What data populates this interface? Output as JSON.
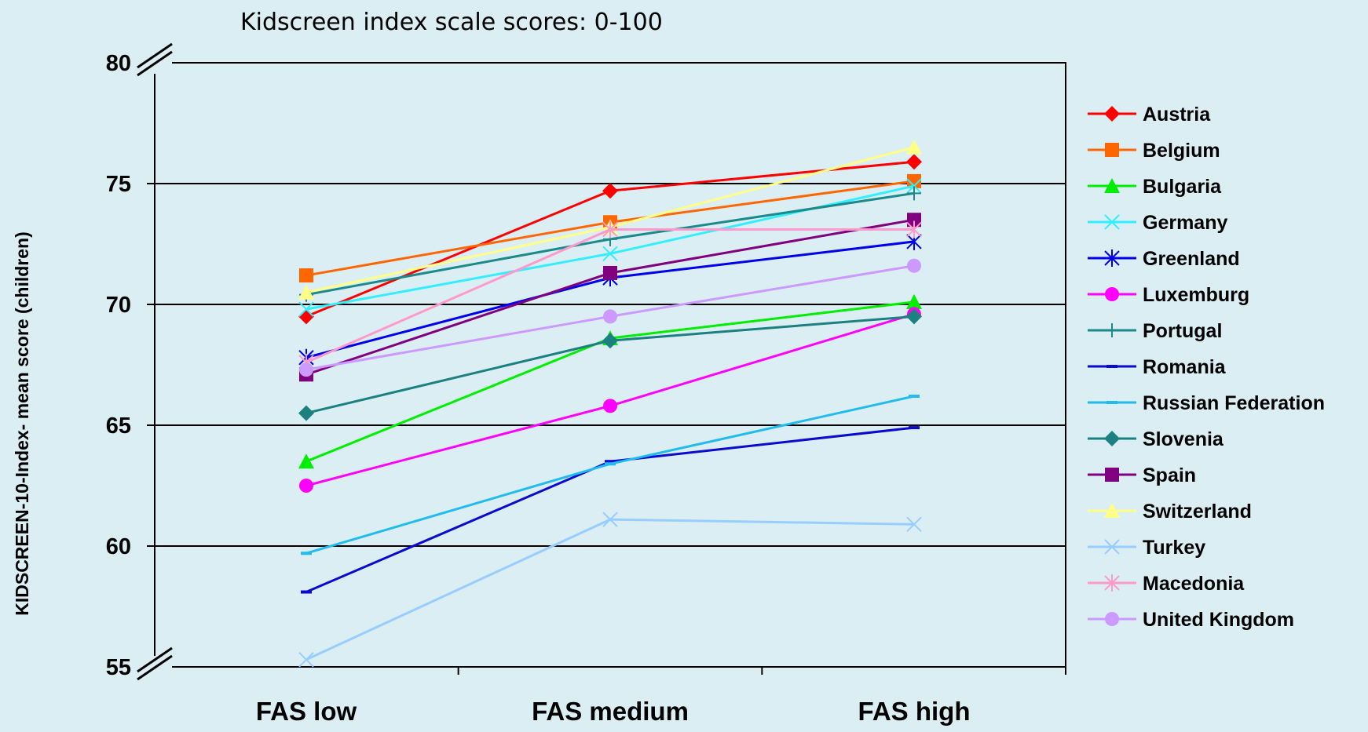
{
  "chart_data": {
    "type": "line",
    "title": "Kidscreen index scale scores: 0-100",
    "xlabel": "",
    "ylabel": "KIDSCREEN-10-Index- mean score (children)",
    "categories": [
      "FAS low",
      "FAS medium",
      "FAS high"
    ],
    "ylim": [
      55,
      80
    ],
    "yticks": [
      "55",
      "60",
      "65",
      "70",
      "75",
      "80"
    ],
    "axis_break": true,
    "grid": "horizontal",
    "legend_position": "right",
    "series": [
      {
        "name": "Austria",
        "color": "#ff0000",
        "marker": "diamond",
        "values": [
          69.5,
          74.7,
          75.9
        ]
      },
      {
        "name": "Belgium",
        "color": "#ff6600",
        "marker": "square",
        "values": [
          71.2,
          73.4,
          75.1
        ]
      },
      {
        "name": "Bulgaria",
        "color": "#00ee00",
        "marker": "triangle",
        "values": [
          63.5,
          68.6,
          70.1
        ]
      },
      {
        "name": "Germany",
        "color": "#33eeff",
        "marker": "x",
        "values": [
          69.8,
          72.1,
          74.9
        ]
      },
      {
        "name": "Greenland",
        "color": "#0000ee",
        "marker": "star",
        "values": [
          67.8,
          71.1,
          72.6
        ]
      },
      {
        "name": "Luxemburg",
        "color": "#ff00ff",
        "marker": "circle",
        "values": [
          62.5,
          65.8,
          69.6
        ]
      },
      {
        "name": "Portugal",
        "color": "#1a8a8a",
        "marker": "plus",
        "values": [
          70.4,
          72.7,
          74.6
        ]
      },
      {
        "name": "Romania",
        "color": "#0a0ad0",
        "marker": "dash",
        "values": [
          58.1,
          63.5,
          64.9
        ]
      },
      {
        "name": "Russian Federation",
        "color": "#22bbee",
        "marker": "dash",
        "values": [
          59.7,
          63.4,
          66.2
        ]
      },
      {
        "name": "Slovenia",
        "color": "#1a8080",
        "marker": "diamond",
        "values": [
          65.5,
          68.5,
          69.5
        ]
      },
      {
        "name": "Spain",
        "color": "#800080",
        "marker": "square",
        "values": [
          67.1,
          71.3,
          73.5
        ]
      },
      {
        "name": "Switzerland",
        "color": "#ffff88",
        "marker": "triangle",
        "values": [
          70.5,
          73.2,
          76.5
        ]
      },
      {
        "name": "Turkey",
        "color": "#99ccff",
        "marker": "x",
        "values": [
          55.3,
          61.1,
          60.9
        ]
      },
      {
        "name": "Macedonia",
        "color": "#ff99cc",
        "marker": "star",
        "values": [
          67.6,
          73.1,
          73.1
        ]
      },
      {
        "name": "United Kingdom",
        "color": "#cc99ff",
        "marker": "circle",
        "values": [
          67.3,
          69.5,
          71.6
        ]
      }
    ]
  }
}
